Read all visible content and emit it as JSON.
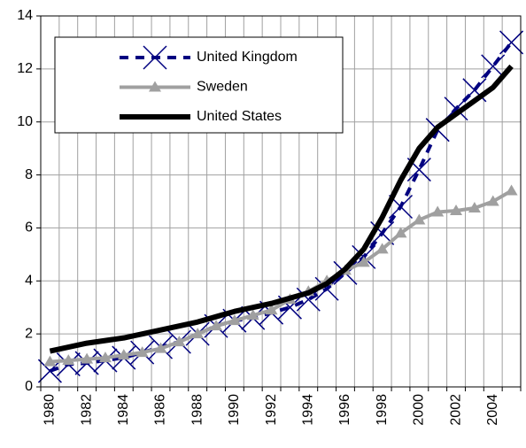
{
  "chart_data": {
    "type": "line",
    "categories": [
      "1980",
      null,
      "1982",
      null,
      "1984",
      null,
      "1986",
      null,
      "1988",
      null,
      "1990",
      null,
      "1992",
      null,
      "1994",
      null,
      "1996",
      null,
      "1998",
      null,
      "2000",
      null,
      "2002",
      null,
      "2004",
      null
    ],
    "series": [
      {
        "name": "United Kingdom",
        "color": "#000080",
        "marker": "x",
        "dashed": true,
        "width": 4,
        "values": [
          0.6,
          0.85,
          0.9,
          1.0,
          1.1,
          1.3,
          1.5,
          1.7,
          2.0,
          2.3,
          2.5,
          2.6,
          2.8,
          3.0,
          3.3,
          3.7,
          4.3,
          4.9,
          5.8,
          6.8,
          8.2,
          9.7,
          10.5,
          11.2,
          12.1,
          13.0
        ]
      },
      {
        "name": "Sweden",
        "color": "#a0a0a0",
        "marker": "triangle",
        "dashed": false,
        "width": 4,
        "values": [
          0.95,
          1.0,
          1.05,
          1.1,
          1.2,
          1.3,
          1.45,
          1.7,
          2.0,
          2.3,
          2.5,
          2.7,
          2.9,
          3.3,
          3.6,
          4.0,
          4.4,
          4.7,
          5.2,
          5.8,
          6.3,
          6.6,
          6.65,
          6.75,
          7.0,
          7.4
        ]
      },
      {
        "name": "United States",
        "color": "#000000",
        "marker": "none",
        "dashed": false,
        "width": 6,
        "values": [
          1.35,
          1.5,
          1.65,
          1.75,
          1.85,
          2.0,
          2.15,
          2.3,
          2.45,
          2.65,
          2.85,
          3.0,
          3.15,
          3.35,
          3.55,
          3.9,
          4.45,
          5.2,
          6.4,
          7.8,
          9.0,
          9.8,
          10.3,
          10.8,
          11.3,
          12.1
        ]
      }
    ],
    "ylim": [
      0,
      14
    ],
    "yticks": [
      0,
      2,
      4,
      6,
      8,
      10,
      12,
      14
    ],
    "grid": true,
    "legend": "top-left"
  }
}
